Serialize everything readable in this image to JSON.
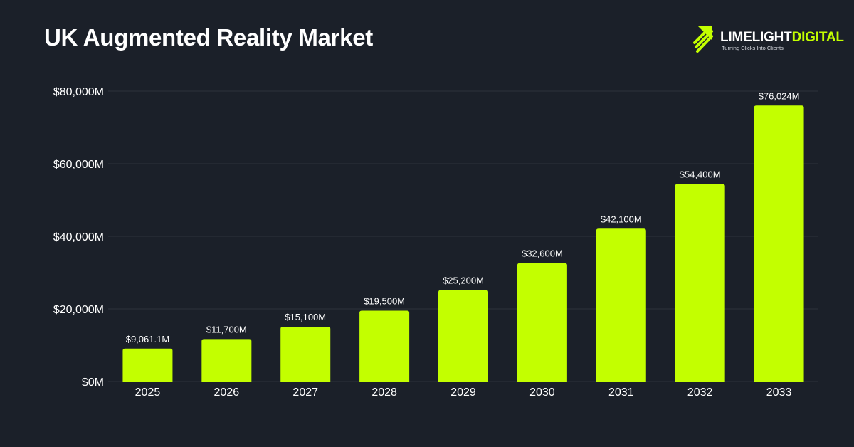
{
  "header": {
    "title": "UK Augmented Reality Market"
  },
  "logo": {
    "word1": "LIMELIGHT",
    "word2": "DIGITAL",
    "tagline": "Turning Clicks Into Clients",
    "icon": "rocket-arrow-icon"
  },
  "colors": {
    "background": "#1b2029",
    "bar": "#c3ff00",
    "text": "#ffffff",
    "grid": "#2c323c"
  },
  "chart_data": {
    "type": "bar",
    "title": "UK Augmented Reality Market",
    "xlabel": "",
    "ylabel": "",
    "categories": [
      "2025",
      "2026",
      "2027",
      "2028",
      "2029",
      "2030",
      "2031",
      "2032",
      "2033"
    ],
    "values": [
      9061.1,
      11700,
      15100,
      19500,
      25200,
      32600,
      42100,
      54400,
      76024
    ],
    "data_labels": [
      "$9,061.1M",
      "$11,700M",
      "$15,100M",
      "$19,500M",
      "$25,200M",
      "$32,600M",
      "$42,100M",
      "$54,400M",
      "$76,024M"
    ],
    "ylim": [
      0,
      80000
    ],
    "yticks": [
      0,
      20000,
      40000,
      60000,
      80000
    ],
    "ytick_labels": [
      "$0M",
      "$20,000M",
      "$40,000M",
      "$60,000M",
      "$80,000M"
    ],
    "grid": true,
    "legend": "none"
  }
}
